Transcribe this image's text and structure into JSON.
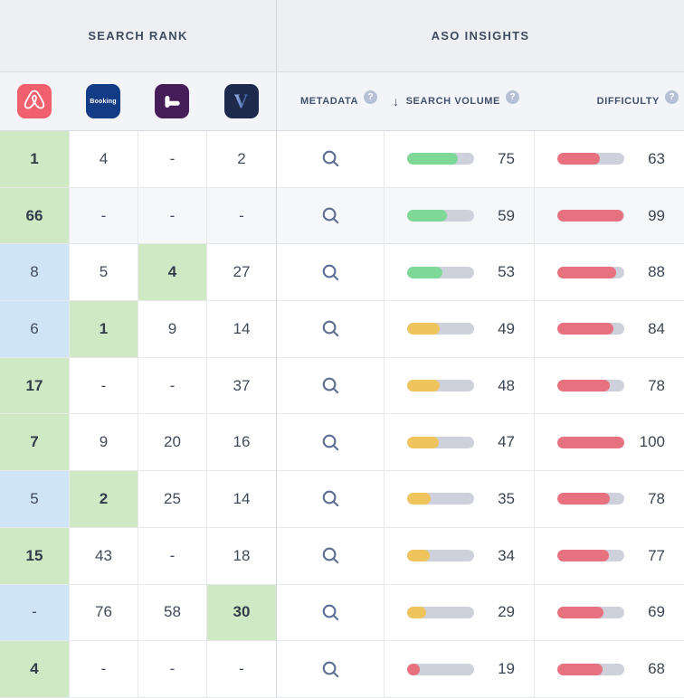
{
  "sections": {
    "search_rank": "SEARCH RANK",
    "aso_insights": "ASO INSIGHTS"
  },
  "columns": {
    "apps": [
      {
        "name": "airbnb",
        "color": "#f0606d"
      },
      {
        "name": "booking",
        "color": "#143b85",
        "label": "Booking"
      },
      {
        "name": "hoteltonight",
        "color": "#451d59"
      },
      {
        "name": "v-app",
        "color": "#1d2a4d",
        "label": "V"
      }
    ],
    "metadata_label": "METADATA",
    "search_volume_label": "SEARCH VOLUME",
    "difficulty_label": "DIFFICULTY",
    "sort_icon": "↓",
    "help_icon": "?"
  },
  "colors": {
    "rank_green_cell": "#cfe9c5",
    "rank_blue_cell": "#d0e4f8",
    "bar_green": "#7ed898",
    "bar_yellow": "#f0c45c",
    "bar_red": "#e7717f",
    "bar_track": "#ced1dc",
    "row_highlight": "#f6f7f9"
  },
  "rows": [
    {
      "highlighted": false,
      "ranks": [
        {
          "value": "1",
          "highlight": "green"
        },
        {
          "value": "4",
          "highlight": "none"
        },
        {
          "value": "-",
          "highlight": "none"
        },
        {
          "value": "2",
          "highlight": "none"
        }
      ],
      "search_volume": {
        "value": 75,
        "level": "green"
      },
      "difficulty": {
        "value": 63,
        "level": "red"
      }
    },
    {
      "highlighted": true,
      "ranks": [
        {
          "value": "66",
          "highlight": "green"
        },
        {
          "value": "-",
          "highlight": "none"
        },
        {
          "value": "-",
          "highlight": "none"
        },
        {
          "value": "-",
          "highlight": "none"
        }
      ],
      "search_volume": {
        "value": 59,
        "level": "green"
      },
      "difficulty": {
        "value": 99,
        "level": "red"
      }
    },
    {
      "highlighted": false,
      "ranks": [
        {
          "value": "8",
          "highlight": "blue"
        },
        {
          "value": "5",
          "highlight": "none"
        },
        {
          "value": "4",
          "highlight": "green"
        },
        {
          "value": "27",
          "highlight": "none"
        }
      ],
      "search_volume": {
        "value": 53,
        "level": "green"
      },
      "difficulty": {
        "value": 88,
        "level": "red"
      }
    },
    {
      "highlighted": false,
      "ranks": [
        {
          "value": "6",
          "highlight": "blue"
        },
        {
          "value": "1",
          "highlight": "green"
        },
        {
          "value": "9",
          "highlight": "none"
        },
        {
          "value": "14",
          "highlight": "none"
        }
      ],
      "search_volume": {
        "value": 49,
        "level": "yellow"
      },
      "difficulty": {
        "value": 84,
        "level": "red"
      }
    },
    {
      "highlighted": false,
      "ranks": [
        {
          "value": "17",
          "highlight": "green"
        },
        {
          "value": "-",
          "highlight": "none"
        },
        {
          "value": "-",
          "highlight": "none"
        },
        {
          "value": "37",
          "highlight": "none"
        }
      ],
      "search_volume": {
        "value": 48,
        "level": "yellow"
      },
      "difficulty": {
        "value": 78,
        "level": "red"
      }
    },
    {
      "highlighted": false,
      "ranks": [
        {
          "value": "7",
          "highlight": "green"
        },
        {
          "value": "9",
          "highlight": "none"
        },
        {
          "value": "20",
          "highlight": "none"
        },
        {
          "value": "16",
          "highlight": "none"
        }
      ],
      "search_volume": {
        "value": 47,
        "level": "yellow"
      },
      "difficulty": {
        "value": 100,
        "level": "red"
      }
    },
    {
      "highlighted": false,
      "ranks": [
        {
          "value": "5",
          "highlight": "blue"
        },
        {
          "value": "2",
          "highlight": "green"
        },
        {
          "value": "25",
          "highlight": "none"
        },
        {
          "value": "14",
          "highlight": "none"
        }
      ],
      "search_volume": {
        "value": 35,
        "level": "yellow"
      },
      "difficulty": {
        "value": 78,
        "level": "red"
      }
    },
    {
      "highlighted": false,
      "ranks": [
        {
          "value": "15",
          "highlight": "green"
        },
        {
          "value": "43",
          "highlight": "none"
        },
        {
          "value": "-",
          "highlight": "none"
        },
        {
          "value": "18",
          "highlight": "none"
        }
      ],
      "search_volume": {
        "value": 34,
        "level": "yellow"
      },
      "difficulty": {
        "value": 77,
        "level": "red"
      }
    },
    {
      "highlighted": false,
      "ranks": [
        {
          "value": "-",
          "highlight": "blue"
        },
        {
          "value": "76",
          "highlight": "none"
        },
        {
          "value": "58",
          "highlight": "none"
        },
        {
          "value": "30",
          "highlight": "green"
        }
      ],
      "search_volume": {
        "value": 29,
        "level": "yellow"
      },
      "difficulty": {
        "value": 69,
        "level": "red"
      }
    },
    {
      "highlighted": false,
      "ranks": [
        {
          "value": "4",
          "highlight": "green"
        },
        {
          "value": "-",
          "highlight": "none"
        },
        {
          "value": "-",
          "highlight": "none"
        },
        {
          "value": "-",
          "highlight": "none"
        }
      ],
      "search_volume": {
        "value": 19,
        "level": "red"
      },
      "difficulty": {
        "value": 68,
        "level": "red"
      }
    }
  ]
}
